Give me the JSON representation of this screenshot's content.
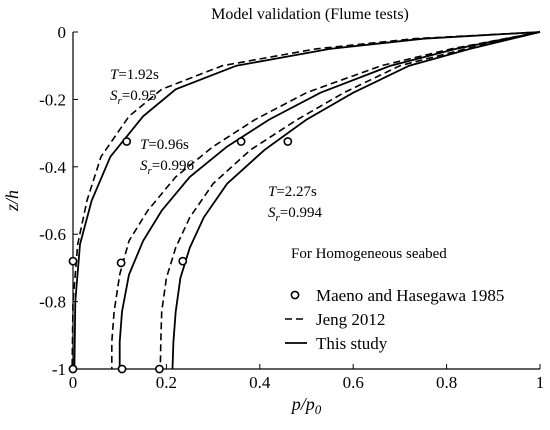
{
  "chart_data": {
    "type": "line",
    "title": "Model validation (Flume tests)",
    "xlabel": "p/p",
    "xlabel_sub": "0",
    "ylabel": "z/h",
    "xlim": [
      0,
      1
    ],
    "ylim": [
      -1,
      0
    ],
    "xticks": [
      0,
      0.2,
      0.4,
      0.6,
      0.8,
      1
    ],
    "xtick_labels": [
      "0",
      "0.2",
      "0.4",
      "0.6",
      "0.8",
      "1"
    ],
    "yticks": [
      0,
      -0.2,
      -0.4,
      -0.6,
      -0.8,
      -1
    ],
    "ytick_labels": [
      "0",
      "-0.2",
      "-0.4",
      "-0.6",
      "-0.8",
      "-1"
    ],
    "note": "For Homogeneous seabed",
    "legend": {
      "position": "bottom-right",
      "entries": [
        {
          "label": "Maeno and Hasegawa 1985",
          "marker": "open-circle"
        },
        {
          "label": "Jeng 2012",
          "style": "dashed"
        },
        {
          "label": "This study",
          "style": "solid"
        }
      ]
    },
    "cases": [
      {
        "period_label": "T=1.92s",
        "T_var": "T",
        "T_val": "=1.92s",
        "sr_var": "S",
        "sr_sub": "r",
        "sr_val": "=0.95",
        "this_study": [
          [
            1.0,
            0
          ],
          [
            0.75,
            -0.02
          ],
          [
            0.55,
            -0.05
          ],
          [
            0.35,
            -0.1
          ],
          [
            0.22,
            -0.17
          ],
          [
            0.15,
            -0.25
          ],
          [
            0.08,
            -0.37
          ],
          [
            0.04,
            -0.5
          ],
          [
            0.015,
            -0.63
          ],
          [
            0.005,
            -0.8
          ],
          [
            0.003,
            -1.0
          ]
        ],
        "jeng_2012": [
          [
            1.0,
            0
          ],
          [
            0.73,
            -0.02
          ],
          [
            0.52,
            -0.05
          ],
          [
            0.32,
            -0.1
          ],
          [
            0.19,
            -0.17
          ],
          [
            0.12,
            -0.25
          ],
          [
            0.06,
            -0.37
          ],
          [
            0.03,
            -0.5
          ],
          [
            0.01,
            -0.63
          ],
          [
            0.0,
            -0.8
          ],
          [
            -0.002,
            -1.0
          ]
        ],
        "experiment": [
          [
            0.115,
            -0.325
          ],
          [
            0.0,
            -0.68
          ],
          [
            0.0,
            -1.0
          ]
        ]
      },
      {
        "period_label": "T=0.96s",
        "T_var": "T",
        "T_val": "=0.96s",
        "sr_var": "S",
        "sr_sub": "r",
        "sr_val": "=0.996",
        "this_study": [
          [
            1.0,
            0
          ],
          [
            0.82,
            -0.05
          ],
          [
            0.68,
            -0.1
          ],
          [
            0.53,
            -0.18
          ],
          [
            0.42,
            -0.26
          ],
          [
            0.33,
            -0.34
          ],
          [
            0.25,
            -0.43
          ],
          [
            0.19,
            -0.53
          ],
          [
            0.15,
            -0.62
          ],
          [
            0.12,
            -0.72
          ],
          [
            0.105,
            -0.83
          ],
          [
            0.1,
            -0.92
          ],
          [
            0.1,
            -1.0
          ]
        ],
        "jeng_2012": [
          [
            1.0,
            0
          ],
          [
            0.81,
            -0.05
          ],
          [
            0.66,
            -0.1
          ],
          [
            0.5,
            -0.18
          ],
          [
            0.39,
            -0.26
          ],
          [
            0.3,
            -0.34
          ],
          [
            0.22,
            -0.43
          ],
          [
            0.16,
            -0.53
          ],
          [
            0.12,
            -0.62
          ],
          [
            0.1,
            -0.72
          ],
          [
            0.088,
            -0.83
          ],
          [
            0.083,
            -0.92
          ],
          [
            0.083,
            -1.0
          ]
        ],
        "experiment": [
          [
            0.36,
            -0.325
          ],
          [
            0.103,
            -0.685
          ],
          [
            0.105,
            -1.0
          ]
        ]
      },
      {
        "period_label": "T=2.27s",
        "T_var": "T",
        "T_val": "=2.27s",
        "sr_var": "S",
        "sr_sub": "r",
        "sr_val": "=0.994",
        "this_study": [
          [
            1.0,
            0
          ],
          [
            0.85,
            -0.05
          ],
          [
            0.72,
            -0.1
          ],
          [
            0.6,
            -0.18
          ],
          [
            0.5,
            -0.26
          ],
          [
            0.41,
            -0.35
          ],
          [
            0.33,
            -0.45
          ],
          [
            0.28,
            -0.55
          ],
          [
            0.25,
            -0.64
          ],
          [
            0.23,
            -0.73
          ],
          [
            0.22,
            -0.83
          ],
          [
            0.215,
            -0.92
          ],
          [
            0.213,
            -1.0
          ]
        ],
        "jeng_2012": [
          [
            1.0,
            0
          ],
          [
            0.84,
            -0.05
          ],
          [
            0.7,
            -0.1
          ],
          [
            0.58,
            -0.18
          ],
          [
            0.48,
            -0.26
          ],
          [
            0.38,
            -0.35
          ],
          [
            0.3,
            -0.45
          ],
          [
            0.25,
            -0.55
          ],
          [
            0.22,
            -0.64
          ],
          [
            0.2,
            -0.73
          ],
          [
            0.19,
            -0.83
          ],
          [
            0.188,
            -0.92
          ],
          [
            0.187,
            -1.0
          ]
        ],
        "experiment": [
          [
            0.46,
            -0.325
          ],
          [
            0.235,
            -0.68
          ],
          [
            0.185,
            -1.0
          ]
        ]
      }
    ]
  }
}
